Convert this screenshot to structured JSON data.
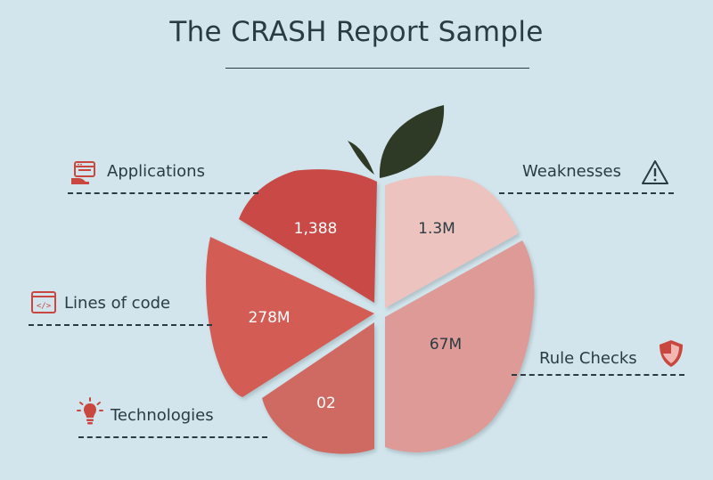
{
  "title": "The CRASH Report Sample",
  "colors": {
    "background": "#d2e5ec",
    "text": "#2a3b42",
    "leaf": "#2e3a26",
    "icon_red": "#c9473f"
  },
  "categories": [
    {
      "label": "Applications",
      "value": "1,388",
      "icon": "browser-hand-icon",
      "color": "#c84a44"
    },
    {
      "label": "Weaknesses",
      "value": "1.3M",
      "icon": "warning-triangle-icon",
      "color": "#ecc3bf"
    },
    {
      "label": "Lines of code",
      "value": "278M",
      "icon": "code-window-icon",
      "color": "#d35b55"
    },
    {
      "label": "Rule Checks",
      "value": "67M",
      "icon": "shield-icon",
      "color": "#de9a96"
    },
    {
      "label": "Technologies",
      "value": "02",
      "icon": "lightbulb-icon",
      "color": "#cf6a63"
    }
  ]
}
